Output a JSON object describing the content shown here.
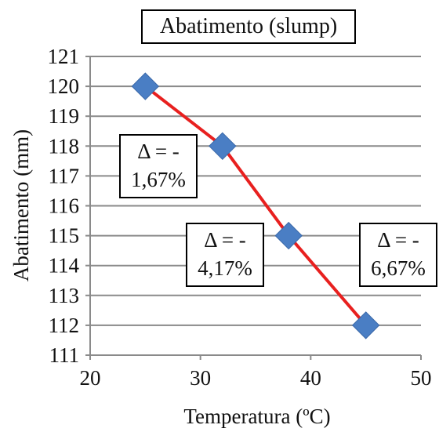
{
  "chart_data": {
    "type": "line",
    "title": "Abatimento (slump)",
    "xlabel": "Temperatura (ºC)",
    "ylabel": "Abatimento (mm)",
    "xlim": [
      20,
      50
    ],
    "ylim": [
      111,
      121
    ],
    "xticks": [
      20,
      30,
      40,
      50
    ],
    "yticks": [
      111,
      112,
      113,
      114,
      115,
      116,
      117,
      118,
      119,
      120,
      121
    ],
    "grid": "horizontal",
    "series": [
      {
        "x": [
          25,
          32,
          38,
          45
        ],
        "y": [
          120,
          118,
          115,
          112
        ]
      }
    ],
    "annotations": [
      {
        "line1": "Δ = -",
        "line2": "1,67%"
      },
      {
        "line1": "Δ = -",
        "line2": "4,17%"
      },
      {
        "line1": "Δ = -",
        "line2": "6,67%"
      }
    ],
    "colors": {
      "line": "#e8201f",
      "marker": "#4a7ec4",
      "grid": "#8a8a8a"
    }
  }
}
